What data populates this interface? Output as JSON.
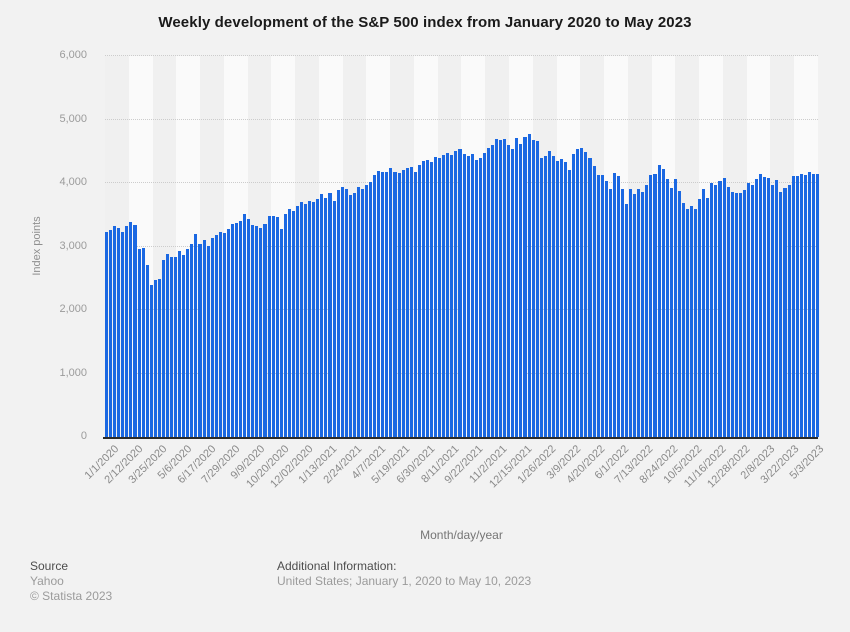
{
  "title": "Weekly development of the S&P 500 index from January 2020 to May 2023",
  "y_axis": {
    "label": "Index points",
    "ticks": [
      "6,000",
      "5,000",
      "4,000",
      "3,000",
      "2,000",
      "1,000",
      "0"
    ]
  },
  "x_axis": {
    "label": "Month/day/year"
  },
  "footer": {
    "source_heading": "Source",
    "source_name": "Yahoo",
    "copyright": "© Statista 2023",
    "additional_heading": "Additional Information:",
    "additional_text": "United States; January 1, 2020 to May 10, 2023"
  },
  "colors": {
    "bar": "#1b68e2",
    "background": "#f2f2f2",
    "stripe_light": "#fafafa",
    "stripe_dark": "#f0f0f0",
    "axis_line": "#2b2b2b",
    "gridline": "#cccccc",
    "title_text": "#1a1a1a",
    "tick_text": "#8a8a8a"
  },
  "chart_data": {
    "type": "bar",
    "title": "Weekly development of the S&P 500 index from January 2020 to May 2023",
    "xlabel": "Month/day/year",
    "ylabel": "Index points",
    "ylim": [
      0,
      6000
    ],
    "grid": true,
    "frequency": "weekly",
    "start_date": "1/1/2020",
    "end_date": "5/10/2023",
    "tick_every": 6,
    "tick_labels": [
      "1/1/2020",
      "2/12/2020",
      "3/25/2020",
      "5/6/2020",
      "6/17/2020",
      "7/29/2020",
      "9/9/2020",
      "10/20/2020",
      "12/02/2020",
      "1/13/2021",
      "2/24/2021",
      "4/7/2021",
      "5/19/2021",
      "6/30/2021",
      "8/11/2021",
      "9/22/2021",
      "11/2/2021",
      "12/15/2021",
      "1/26/2022",
      "3/9/2022",
      "4/20/2022",
      "6/1/2022",
      "7/13/2022",
      "8/24/2022",
      "10/5/2022",
      "11/16/2022",
      "12/28/2022",
      "2/8/2023",
      "3/22/2023",
      "5/3/2023"
    ],
    "values": [
      3235,
      3265,
      3330,
      3295,
      3226,
      3328,
      3380,
      3338,
      2954,
      2972,
      2711,
      2398,
      2476,
      2489,
      2790,
      2875,
      2837,
      2831,
      2930,
      2864,
      2955,
      3044,
      3194,
      3041,
      3098,
      3009,
      3130,
      3185,
      3225,
      3216,
      3271,
      3351,
      3373,
      3397,
      3508,
      3427,
      3341,
      3319,
      3298,
      3348,
      3477,
      3484,
      3465,
      3270,
      3509,
      3585,
      3558,
      3638,
      3699,
      3663,
      3709,
      3703,
      3756,
      3825,
      3768,
      3841,
      3714,
      3887,
      3935,
      3907,
      3811,
      3842,
      3943,
      3913,
      3975,
      4020,
      4129,
      4185,
      4180,
      4181,
      4233,
      4174,
      4156,
      4204,
      4230,
      4247,
      4166,
      4281,
      4352,
      4370,
      4327,
      4412,
      4395,
      4437,
      4468,
      4442,
      4509,
      4535,
      4459,
      4433,
      4455,
      4357,
      4391,
      4471,
      4545,
      4605,
      4698,
      4683,
      4698,
      4595,
      4538,
      4712,
      4621,
      4726,
      4766,
      4677,
      4663,
      4398,
      4432,
      4501,
      4419,
      4349,
      4385,
      4329,
      4204,
      4463,
      4543,
      4546,
      4488,
      4393,
      4272,
      4132,
      4123,
      4024,
      3901,
      4158,
      4109,
      3901,
      3675,
      3912,
      3825,
      3899,
      3863,
      3962,
      4130,
      4145,
      4280,
      4228,
      4058,
      3924,
      4067,
      3873,
      3693,
      3586,
      3640,
      3583,
      3753,
      3901,
      3771,
      3993,
      3965,
      4026,
      4072,
      3934,
      3852,
      3845,
      3840,
      3895,
      3999,
      3973,
      4071,
      4136,
      4090,
      4079,
      3970,
      4046,
      3862,
      3917,
      3971,
      4109,
      4105,
      4138,
      4134,
      4169,
      4136,
      4138
    ]
  }
}
